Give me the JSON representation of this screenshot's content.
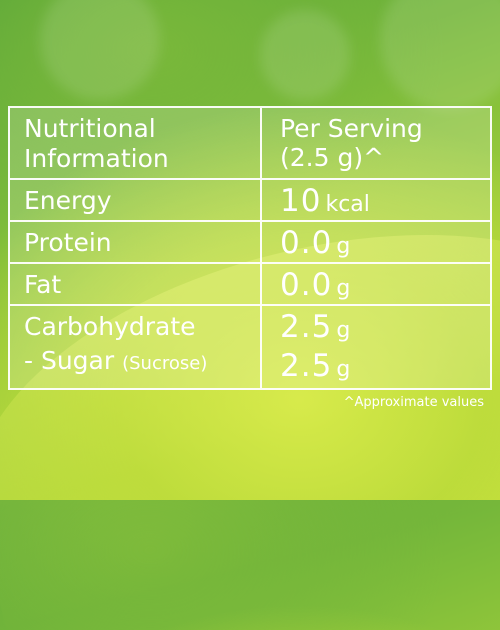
{
  "table": {
    "header": {
      "left_line1": "Nutritional",
      "left_line2": "Information",
      "right_line1": "Per Serving",
      "right_line2": "(2.5 g)^"
    },
    "rows": [
      {
        "label": "Energy",
        "value": "10",
        "unit": "kcal"
      },
      {
        "label": "Protein",
        "value": "0.0",
        "unit": "g"
      },
      {
        "label": "Fat",
        "value": "0.0",
        "unit": "g"
      },
      {
        "label": "Carbohydrate",
        "value": "2.5",
        "unit": "g",
        "sub_label": "- Sugar",
        "sub_label_note": "(Sucrose)",
        "sub_value": "2.5",
        "sub_unit": "g"
      }
    ]
  },
  "footnote": "^Approximate values"
}
